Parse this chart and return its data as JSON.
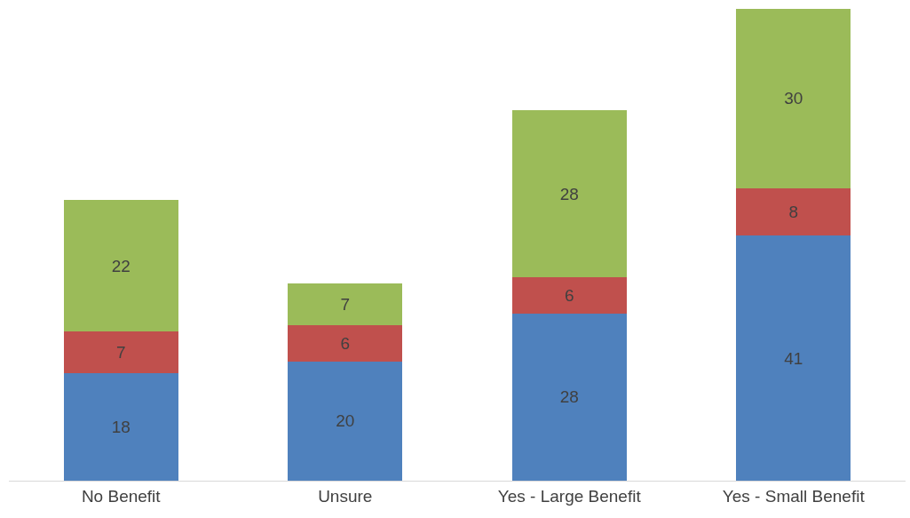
{
  "chart_data": {
    "type": "bar",
    "stacked": true,
    "data_labels": true,
    "tick_labels": "x",
    "categories": [
      "No Benefit",
      "Unsure",
      "Yes - Large Benefit",
      "Yes - Small Benefit"
    ],
    "series": [
      {
        "color": "#4f81bd",
        "values": [
          18,
          20,
          28,
          41
        ]
      },
      {
        "color": "#c0504d",
        "values": [
          7,
          6,
          6,
          8
        ]
      },
      {
        "color": "#9bbb59",
        "values": [
          22,
          7,
          28,
          30
        ]
      }
    ]
  }
}
